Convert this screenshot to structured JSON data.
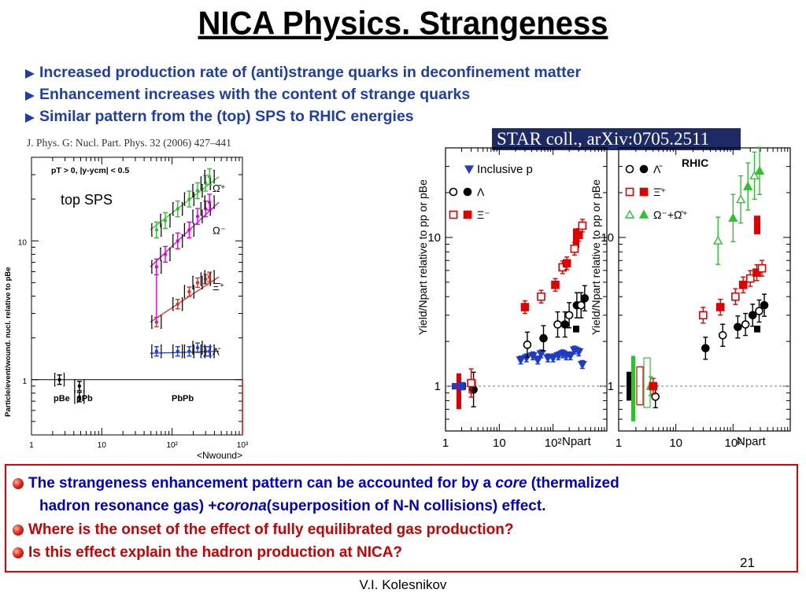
{
  "slide": {
    "title": "NICA Physics. Strangeness",
    "bullets": [
      "Increased production rate of (anti)strange quarks in deconfinement matter",
      "Enhancement increases with the content of strange quarks",
      "Similar pattern from the (top) SPS to RHIC energies"
    ],
    "reference": "J. Phys. G: Nucl. Part. Phys. 32 (2006) 427–441",
    "star_label": "STAR coll., arXiv:0705.2511",
    "box": {
      "line1_a": "The strangeness enhancement pattern can be accounted for by a ",
      "line1_core": "core",
      "line1_b": " (thermalized",
      "line2_a": "hadron resonance gas) + ",
      "line2_corona": "corona",
      "line2_b": " (superposition of N-N collisions) effect.",
      "line3": "Where is the onset of the effect of fully equilibrated gas production?",
      "line4": "Is this effect explain the hadron production at NICA?"
    },
    "page_number": "21",
    "author": "V.I. Kolesnikov",
    "colors": {
      "title": "#000000",
      "bullet_text": "#1f3ea8",
      "box_text": "#0000cc",
      "question_text": "#cc0000",
      "box_border": "#e00000",
      "star_bg": "#1e2a66"
    }
  },
  "chart_data": [
    {
      "type": "scatter",
      "title": "",
      "label": "top SPS",
      "cut_text": "pT > 0,  |y-ycm| < 0.5",
      "xlabel": "<Nwound>",
      "ylabel": "Particle/event/wound. nucl. relative to pBe",
      "x_scale": "log",
      "y_scale": "log",
      "xlim": [
        1,
        1000
      ],
      "ylim": [
        0.4,
        40
      ],
      "x_ticks": [
        "1",
        "10",
        "10²",
        "10³"
      ],
      "y_ticks": [
        "1",
        "10"
      ],
      "system_labels": [
        "pBe",
        "pPb",
        "PbPb"
      ],
      "series": [
        {
          "name": "Ω̄⁺",
          "x": [
            60,
            80,
            120,
            175,
            230,
            300,
            340
          ],
          "y": [
            12,
            14,
            17,
            20,
            23,
            26,
            29
          ]
        },
        {
          "name": "Ω⁻",
          "x": [
            60,
            80,
            120,
            175,
            230,
            300,
            340
          ],
          "y": [
            6.5,
            8,
            10,
            12,
            15,
            17,
            19
          ]
        },
        {
          "name": "Ξ̄⁺",
          "x": [
            60,
            120,
            175,
            230,
            300,
            340
          ],
          "y": [
            2.6,
            3.5,
            4.3,
            5,
            5.3,
            5.5
          ]
        },
        {
          "name": "Λ̄",
          "x": [
            60,
            120,
            175,
            230,
            300,
            340
          ],
          "y": [
            1.6,
            1.6,
            1.6,
            1.7,
            1.6,
            1.6
          ]
        },
        {
          "name": "",
          "x": [
            2.5,
            4.8,
            4.8
          ],
          "y": [
            1.0,
            0.9,
            0.75
          ]
        }
      ]
    },
    {
      "type": "scatter",
      "title": "",
      "xlabel": "Npart",
      "ylabel": "Yield/Npart relative to pp or pBe",
      "x_scale": "log",
      "y_scale": "log",
      "xlim": [
        1,
        1000
      ],
      "ylim": [
        0.5,
        40
      ],
      "x_ticks": [
        "1",
        "10",
        "10²"
      ],
      "y_ticks": [
        "1",
        "10"
      ],
      "series": [
        {
          "name": "Inclusive p",
          "x": [
            2.1,
            25,
            32,
            42,
            52,
            60,
            80,
            100,
            125,
            150,
            175,
            210,
            250,
            300,
            350
          ],
          "y": [
            1.0,
            1.5,
            1.55,
            1.6,
            1.5,
            1.65,
            1.55,
            1.55,
            1.6,
            1.65,
            1.6,
            1.6,
            1.75,
            1.7,
            1.4
          ]
        },
        {
          "name": "Λ",
          "x": [
            3,
            30,
            60,
            110,
            150,
            180,
            250,
            300,
            350
          ],
          "y": [
            0.95,
            1.9,
            2.1,
            2.6,
            2.6,
            3.0,
            3.5,
            3.5,
            3.9
          ]
        },
        {
          "name": "Ξ⁻",
          "x": [
            3,
            30,
            60,
            110,
            150,
            180,
            250,
            300,
            350
          ],
          "y": [
            1.05,
            3.4,
            4.0,
            4.8,
            6.3,
            6.7,
            8.4,
            10.4,
            12.0
          ]
        }
      ]
    },
    {
      "type": "scatter",
      "title": "",
      "label": "RHIC",
      "xlabel": "Npart",
      "ylabel": "Yield/Npart relative to pp or pBe",
      "x_scale": "log",
      "y_scale": "log",
      "xlim": [
        1,
        1000
      ],
      "ylim": [
        0.5,
        40
      ],
      "x_ticks": [
        "1",
        "10",
        "10²"
      ],
      "y_ticks": [
        "1",
        "10"
      ],
      "series": [
        {
          "name": "Λ̄",
          "x": [
            4,
            30,
            60,
            110,
            150,
            200,
            260,
            320
          ],
          "y": [
            0.85,
            1.8,
            2.2,
            2.5,
            2.6,
            3.0,
            3.2,
            3.5
          ]
        },
        {
          "name": "Ξ̄⁺",
          "x": [
            4,
            30,
            60,
            110,
            150,
            200,
            260,
            320
          ],
          "y": [
            1.0,
            3.0,
            3.4,
            4.0,
            4.8,
            5.3,
            5.8,
            6.2
          ]
        },
        {
          "name": "Ω⁻+Ω̄⁺",
          "x": [
            4,
            60,
            110,
            150,
            200,
            260,
            320
          ],
          "y": [
            1.0,
            9.5,
            13.5,
            18.0,
            22.0,
            26.0,
            28.0
          ]
        }
      ]
    }
  ]
}
